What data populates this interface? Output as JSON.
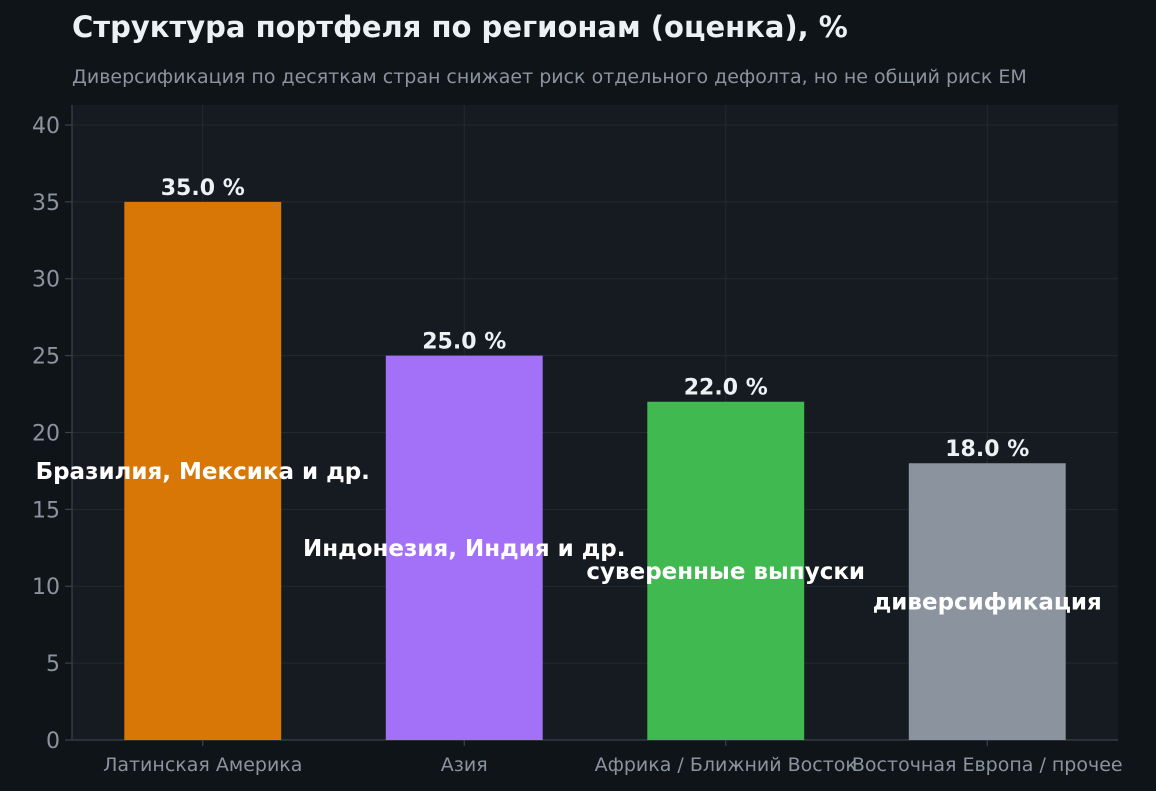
{
  "chart_data": {
    "type": "bar",
    "title": "Структура портфеля по регионам (оценка), %",
    "subtitle": "Диверсификация по десяткам стран снижает риск отдельного дефолта, но не общий риск EM",
    "xlabel": "",
    "ylabel": "",
    "ylim": [
      0,
      41.3
    ],
    "yticks": [
      0,
      5,
      10,
      15,
      20,
      25,
      30,
      35,
      40
    ],
    "grid": true,
    "legend": "none",
    "categories": [
      "Латинская Америка",
      "Азия",
      "Африка / Ближний Восток",
      "Восточная Европа / прочее"
    ],
    "values": [
      35.0,
      25.0,
      22.0,
      18.0
    ],
    "value_labels": [
      "35.0 %",
      "25.0 %",
      "22.0 %",
      "18.0 %"
    ],
    "annotations": [
      "Бразилия, Мексика и др.",
      "Индонезия, Индия и др.",
      "суверенные выпуски",
      "диверсификация"
    ],
    "annotation_y": [
      17.5,
      12.5,
      11.0,
      9.0
    ],
    "colors": [
      "#d97706",
      "#a371f7",
      "#3fb950",
      "#8b949e"
    ],
    "background": "#0f1418",
    "plot_background": "#161b22",
    "grid_color": "#222a33"
  }
}
